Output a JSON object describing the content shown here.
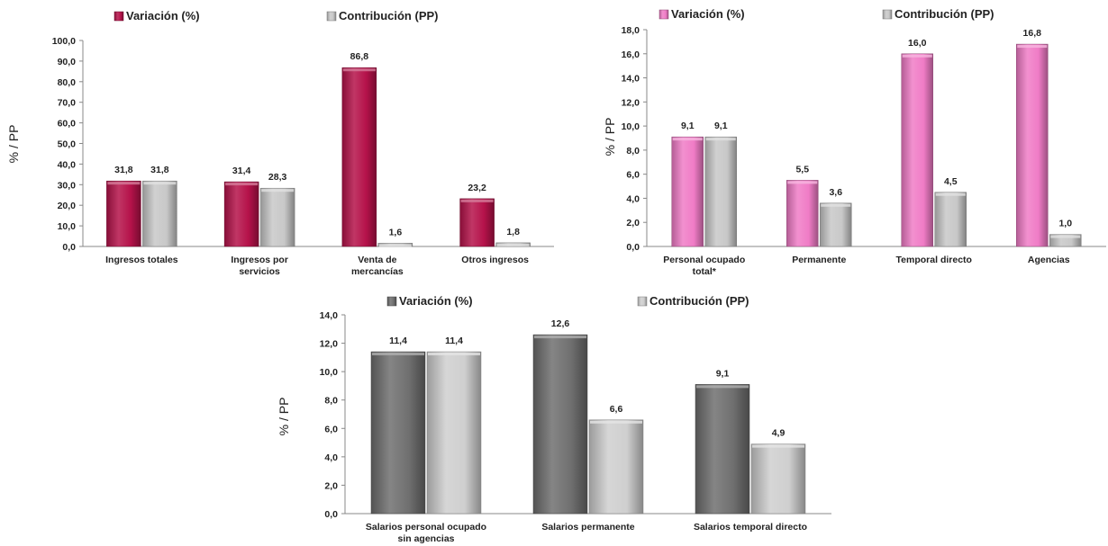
{
  "chart_data": [
    {
      "type": "bar",
      "categories": [
        [
          "Ingresos totales"
        ],
        [
          "Ingresos por",
          "servicios"
        ],
        [
          "Venta de",
          "mercancías"
        ],
        [
          "Otros ingresos"
        ]
      ],
      "series": [
        {
          "name": "Variación (%)",
          "values": [
            31.8,
            31.4,
            86.8,
            23.2
          ],
          "labels": [
            "31,8",
            "31,4",
            "86,8",
            "23,2"
          ],
          "color": "#b5124a"
        },
        {
          "name": "Contribución (PP)",
          "values": [
            31.8,
            28.3,
            1.6,
            1.8
          ],
          "labels": [
            "31,8",
            "28,3",
            "1,6",
            "1,8"
          ],
          "color": "#c8c8c8"
        }
      ],
      "ylabel": "% / PP",
      "ylim": [
        0,
        100
      ],
      "yticks": [
        "0,0",
        "10,0",
        "20,0",
        "30,0",
        "40,0",
        "50,0",
        "60,0",
        "70,0",
        "80,0",
        "90,0",
        "100,0"
      ],
      "legend": "top",
      "grid": false
    },
    {
      "type": "bar",
      "categories": [
        [
          "Personal ocupado",
          "total*"
        ],
        [
          "Permanente"
        ],
        [
          "Temporal directo"
        ],
        [
          "Agencias"
        ]
      ],
      "series": [
        {
          "name": "Variación (%)",
          "values": [
            9.1,
            5.5,
            16.0,
            16.8
          ],
          "labels": [
            "9,1",
            "5,5",
            "16,0",
            "16,8"
          ],
          "color": "#f07cc6"
        },
        {
          "name": "Contribución (PP)",
          "values": [
            9.1,
            3.6,
            4.5,
            1.0
          ],
          "labels": [
            "9,1",
            "3,6",
            "4,5",
            "1,0"
          ],
          "color": "#c8c8c8"
        }
      ],
      "ylabel": "% / PP",
      "ylim": [
        0,
        18
      ],
      "yticks": [
        "0,0",
        "2,0",
        "4,0",
        "6,0",
        "8,0",
        "10,0",
        "12,0",
        "14,0",
        "16,0",
        "18,0"
      ],
      "legend": "top",
      "grid": false
    },
    {
      "type": "bar",
      "categories": [
        [
          "Salarios personal ocupado",
          "sin agencias"
        ],
        [
          "Salarios permanente"
        ],
        [
          "Salarios temporal directo"
        ]
      ],
      "series": [
        {
          "name": "Variación (%)",
          "values": [
            11.4,
            12.6,
            9.1
          ],
          "labels": [
            "11,4",
            "12,6",
            "9,1"
          ],
          "color": "#6f6f6f"
        },
        {
          "name": "Contribución (PP)",
          "values": [
            11.4,
            6.6,
            4.9
          ],
          "labels": [
            "11,4",
            "6,6",
            "4,9"
          ],
          "color": "#cfcfcf"
        }
      ],
      "ylabel": "% / PP",
      "ylim": [
        0,
        14
      ],
      "yticks": [
        "0,0",
        "2,0",
        "4,0",
        "6,0",
        "8,0",
        "10,0",
        "12,0",
        "14,0"
      ],
      "legend": "top",
      "grid": false
    }
  ]
}
